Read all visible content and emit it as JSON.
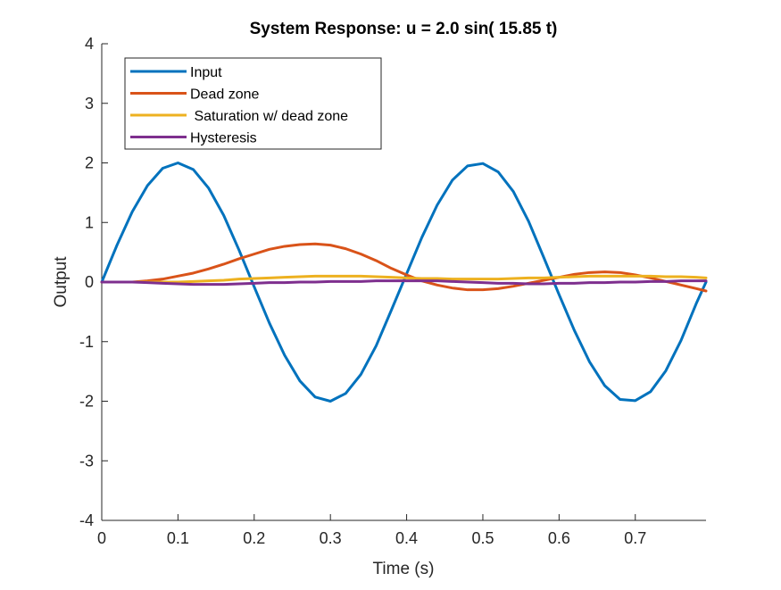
{
  "chart_data": {
    "type": "line",
    "title": "System Response: u = 2.0 sin( 15.85 t)",
    "xlabel": "Time (s)",
    "ylabel": "Output",
    "xlim": [
      0,
      0.7928
    ],
    "ylim": [
      -4,
      4
    ],
    "xticks": [
      0,
      0.1,
      0.2,
      0.3,
      0.4,
      0.5,
      0.6,
      0.7
    ],
    "xtick_labels": [
      "0",
      "0.1",
      "0.2",
      "0.3",
      "0.4",
      "0.5",
      "0.6",
      "0.7"
    ],
    "yticks": [
      -4,
      -3,
      -2,
      -1,
      0,
      1,
      2,
      3,
      4
    ],
    "ytick_labels": [
      "-4",
      "-3",
      "-2",
      "-1",
      "0",
      "1",
      "2",
      "3",
      "4"
    ],
    "grid": false,
    "legend_position": "top-left",
    "series": [
      {
        "name": "Input",
        "color": "#0072BD",
        "x": [
          0,
          0.02,
          0.04,
          0.06,
          0.08,
          0.1,
          0.12,
          0.14,
          0.16,
          0.18,
          0.2,
          0.22,
          0.24,
          0.26,
          0.28,
          0.3,
          0.32,
          0.34,
          0.36,
          0.38,
          0.4,
          0.42,
          0.44,
          0.46,
          0.48,
          0.5,
          0.52,
          0.54,
          0.56,
          0.58,
          0.6,
          0.62,
          0.64,
          0.66,
          0.68,
          0.7,
          0.72,
          0.74,
          0.76,
          0.78,
          0.7928
        ],
        "values": [
          0,
          0.62,
          1.18,
          1.62,
          1.91,
          2.0,
          1.89,
          1.58,
          1.12,
          0.54,
          -0.08,
          -0.69,
          -1.23,
          -1.66,
          -1.93,
          -2.0,
          -1.87,
          -1.55,
          -1.07,
          -0.47,
          0.14,
          0.75,
          1.29,
          1.71,
          1.95,
          1.99,
          1.85,
          1.52,
          1.02,
          0.41,
          -0.21,
          -0.81,
          -1.34,
          -1.74,
          -1.97,
          -1.99,
          -1.84,
          -1.49,
          -0.98,
          -0.36,
          0.0
        ]
      },
      {
        "name": "Dead zone",
        "color": "#D95319",
        "x": [
          0,
          0.02,
          0.04,
          0.06,
          0.08,
          0.1,
          0.12,
          0.14,
          0.16,
          0.18,
          0.2,
          0.22,
          0.24,
          0.26,
          0.28,
          0.3,
          0.32,
          0.34,
          0.36,
          0.38,
          0.4,
          0.42,
          0.44,
          0.46,
          0.48,
          0.5,
          0.52,
          0.54,
          0.56,
          0.58,
          0.6,
          0.62,
          0.64,
          0.66,
          0.68,
          0.7,
          0.72,
          0.74,
          0.76,
          0.78,
          0.7928
        ],
        "values": [
          0,
          0.0,
          0.0,
          0.02,
          0.05,
          0.1,
          0.15,
          0.22,
          0.3,
          0.39,
          0.47,
          0.55,
          0.6,
          0.63,
          0.64,
          0.62,
          0.56,
          0.47,
          0.36,
          0.23,
          0.12,
          0.02,
          -0.05,
          -0.1,
          -0.13,
          -0.13,
          -0.11,
          -0.07,
          -0.02,
          0.03,
          0.08,
          0.13,
          0.16,
          0.17,
          0.16,
          0.12,
          0.07,
          0.01,
          -0.05,
          -0.11,
          -0.15
        ]
      },
      {
        "name": " Saturation w/ dead zone",
        "color": "#EDB120",
        "x": [
          0,
          0.02,
          0.04,
          0.06,
          0.08,
          0.1,
          0.12,
          0.14,
          0.16,
          0.18,
          0.2,
          0.22,
          0.24,
          0.26,
          0.28,
          0.3,
          0.32,
          0.34,
          0.36,
          0.38,
          0.4,
          0.42,
          0.44,
          0.46,
          0.48,
          0.5,
          0.52,
          0.54,
          0.56,
          0.58,
          0.6,
          0.62,
          0.64,
          0.66,
          0.68,
          0.7,
          0.72,
          0.74,
          0.76,
          0.78,
          0.7928
        ],
        "values": [
          0,
          0.0,
          0.0,
          0.0,
          0.0,
          0.0,
          0.01,
          0.02,
          0.03,
          0.05,
          0.06,
          0.07,
          0.08,
          0.09,
          0.1,
          0.1,
          0.1,
          0.1,
          0.09,
          0.08,
          0.07,
          0.06,
          0.06,
          0.05,
          0.05,
          0.05,
          0.05,
          0.06,
          0.07,
          0.07,
          0.08,
          0.09,
          0.1,
          0.1,
          0.1,
          0.1,
          0.1,
          0.09,
          0.09,
          0.08,
          0.07
        ]
      },
      {
        "name": "Hysteresis",
        "color": "#7E2F8E",
        "x": [
          0,
          0.02,
          0.04,
          0.06,
          0.08,
          0.1,
          0.12,
          0.14,
          0.16,
          0.18,
          0.2,
          0.22,
          0.24,
          0.26,
          0.28,
          0.3,
          0.32,
          0.34,
          0.36,
          0.38,
          0.4,
          0.42,
          0.44,
          0.46,
          0.48,
          0.5,
          0.52,
          0.54,
          0.56,
          0.58,
          0.6,
          0.62,
          0.64,
          0.66,
          0.68,
          0.7,
          0.72,
          0.74,
          0.76,
          0.78,
          0.7928
        ],
        "values": [
          0,
          0.0,
          0.0,
          -0.01,
          -0.02,
          -0.03,
          -0.04,
          -0.04,
          -0.04,
          -0.03,
          -0.02,
          -0.01,
          -0.01,
          0.0,
          0.0,
          0.01,
          0.01,
          0.01,
          0.02,
          0.02,
          0.02,
          0.02,
          0.02,
          0.01,
          0.0,
          -0.01,
          -0.02,
          -0.02,
          -0.03,
          -0.03,
          -0.02,
          -0.02,
          -0.01,
          -0.01,
          0.0,
          0.0,
          0.01,
          0.01,
          0.02,
          0.02,
          0.02
        ]
      }
    ]
  }
}
